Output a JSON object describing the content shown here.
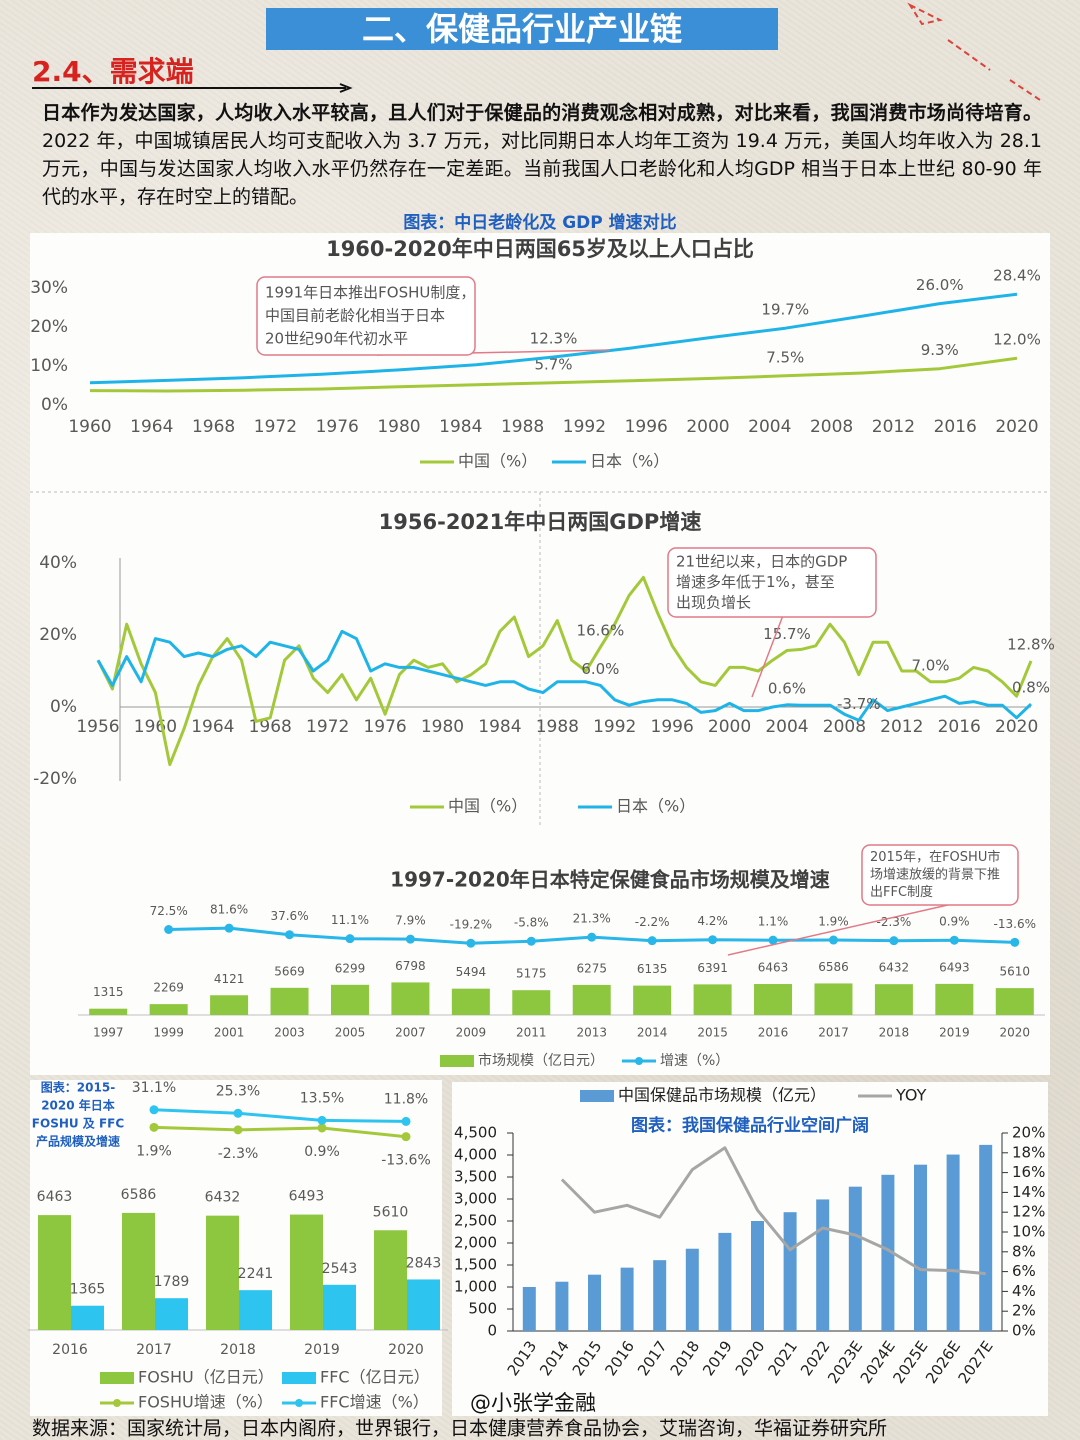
{
  "header": {
    "title": "二、保健品行业产业链",
    "section": "2.4、需求端",
    "paragraph_bold": "日本作为发达国家，人均收入水平较高，且人们对于保健品的消费观念相对成熟，对比来看，我国消费市场尚待培育。",
    "paragraph": "2022 年，中国城镇居民人均可支配收入为 3.7 万元，对比同期日本人均年工资为 19.4 万元，美国人均年收入为 28.1 万元，中国与发达国家人均收入水平仍然存在一定差距。当前我国人口老龄化和人均GDP 相当于日本上世纪 80-90 年代的水平，存在时空上的错配。",
    "figure_caption": "图表：中日老龄化及 GDP 增速对比"
  },
  "chart_data": [
    {
      "type": "line",
      "title": "1960-2020年中日两国65岁及以上人口占比",
      "x": [
        1960,
        1965,
        1970,
        1975,
        1980,
        1985,
        1990,
        1995,
        2000,
        2005,
        2010,
        2015,
        2020
      ],
      "xlim": [
        1960,
        2020
      ],
      "xticks": [
        1960,
        1964,
        1968,
        1972,
        1976,
        1980,
        1984,
        1988,
        1992,
        1996,
        2000,
        2004,
        2008,
        2012,
        2016,
        2020
      ],
      "ylim": [
        0,
        30
      ],
      "yticks": [
        {
          "value": 0,
          "label": "0%"
        },
        {
          "value": 10,
          "label": "10%"
        },
        {
          "value": 20,
          "label": "20%"
        },
        {
          "value": 30,
          "label": "30%"
        }
      ],
      "series": [
        {
          "name": "中国（%）",
          "color": "#a3c93a",
          "values": [
            3.7,
            3.6,
            3.8,
            4.1,
            4.7,
            5.2,
            5.7,
            6.2,
            6.8,
            7.5,
            8.2,
            9.3,
            12.0
          ],
          "value_labels": [
            null,
            null,
            null,
            null,
            null,
            null,
            "5.7%",
            null,
            null,
            "7.5%",
            null,
            "9.3%",
            "12.0%"
          ]
        },
        {
          "name": "日本（%）",
          "color": "#1fb4e8",
          "values": [
            5.7,
            6.3,
            7.0,
            7.9,
            9.0,
            10.3,
            12.3,
            14.6,
            17.2,
            19.7,
            22.8,
            26.0,
            28.4
          ],
          "value_labels": [
            null,
            null,
            null,
            null,
            null,
            null,
            "12.3%",
            null,
            null,
            "19.7%",
            null,
            "26.0%",
            "28.4%"
          ]
        }
      ],
      "annotation": [
        "1991年日本推出FOSHU制度，",
        "中国目前老龄化相当于日本",
        "20世纪90年代初水平"
      ]
    },
    {
      "type": "line",
      "title": "1956-2021年中日两国GDP增速",
      "x": [
        1956,
        1957,
        1958,
        1959,
        1960,
        1961,
        1962,
        1963,
        1964,
        1965,
        1966,
        1967,
        1968,
        1969,
        1970,
        1971,
        1972,
        1973,
        1974,
        1975,
        1976,
        1977,
        1978,
        1979,
        1980,
        1981,
        1982,
        1983,
        1984,
        1985,
        1986,
        1987,
        1988,
        1989,
        1990,
        1991,
        1992,
        1993,
        1994,
        1995,
        1996,
        1997,
        1998,
        1999,
        2000,
        2001,
        2002,
        2003,
        2004,
        2005,
        2006,
        2007,
        2008,
        2009,
        2010,
        2011,
        2012,
        2013,
        2014,
        2015,
        2016,
        2017,
        2018,
        2019,
        2020,
        2021
      ],
      "xlim": [
        1956,
        2021
      ],
      "xticks": [
        1956,
        1960,
        1964,
        1968,
        1972,
        1976,
        1980,
        1984,
        1988,
        1992,
        1996,
        2000,
        2004,
        2008,
        2012,
        2016,
        2020
      ],
      "ylim": [
        -20,
        40
      ],
      "yticks": [
        {
          "value": -20,
          "label": "-20%"
        },
        {
          "value": 0,
          "label": "0%"
        },
        {
          "value": 20,
          "label": "20%"
        },
        {
          "value": 40,
          "label": "40%"
        }
      ],
      "series": [
        {
          "name": "中国（%）",
          "color": "#a3c93a",
          "values": [
            13,
            5,
            23,
            12,
            4,
            -16,
            -6,
            6,
            14,
            19,
            13,
            -4,
            -3,
            13,
            17,
            8,
            4,
            9,
            2,
            8,
            -2,
            9,
            13,
            11,
            12,
            7,
            9,
            12,
            21,
            25,
            14,
            17,
            24,
            13,
            10,
            16.6,
            23,
            31,
            36,
            26,
            17,
            11,
            7,
            6,
            11,
            11,
            10,
            13,
            15.7,
            16,
            17,
            23,
            18,
            9,
            18,
            18,
            10,
            10,
            7.0,
            7,
            8,
            11,
            10,
            7,
            3,
            12.8
          ],
          "value_labels": [
            null,
            null,
            null,
            null,
            null,
            null,
            null,
            null,
            null,
            null,
            null,
            null,
            null,
            null,
            null,
            null,
            null,
            null,
            null,
            null,
            null,
            null,
            null,
            null,
            null,
            null,
            null,
            null,
            null,
            null,
            null,
            null,
            null,
            null,
            null,
            "16.6%",
            null,
            null,
            null,
            null,
            null,
            null,
            null,
            null,
            null,
            null,
            null,
            null,
            "15.7%",
            null,
            null,
            null,
            null,
            null,
            null,
            null,
            null,
            null,
            "7.0%",
            null,
            null,
            null,
            null,
            null,
            null,
            "12.8%"
          ]
        },
        {
          "name": "日本（%）",
          "color": "#1fb4e8",
          "values": [
            13,
            6,
            14,
            7,
            19,
            18,
            14,
            15,
            14,
            16,
            17,
            14,
            18,
            17,
            16,
            10,
            13,
            21,
            19,
            10,
            12,
            11,
            11,
            10,
            9,
            8,
            7,
            6,
            7,
            7,
            5,
            4,
            7,
            7,
            7,
            6.0,
            2,
            0.5,
            1.5,
            2,
            2,
            1,
            -1.5,
            -1,
            1,
            -1,
            -1,
            0,
            0.6,
            0.5,
            0.5,
            0.5,
            -2,
            -3.7,
            2,
            -1,
            0,
            1,
            2,
            3,
            1,
            1.5,
            0.5,
            0.5,
            -3,
            0.8
          ],
          "value_labels": [
            null,
            null,
            null,
            null,
            null,
            null,
            null,
            null,
            null,
            null,
            null,
            null,
            null,
            null,
            null,
            null,
            null,
            null,
            null,
            null,
            null,
            null,
            null,
            null,
            null,
            null,
            null,
            null,
            null,
            null,
            null,
            null,
            null,
            null,
            null,
            "6.0%",
            null,
            null,
            null,
            null,
            null,
            null,
            null,
            null,
            null,
            null,
            null,
            null,
            "0.6%",
            null,
            null,
            null,
            null,
            "-3.7%",
            null,
            null,
            null,
            null,
            null,
            null,
            null,
            null,
            null,
            null,
            null,
            "0.8%"
          ]
        }
      ],
      "annotation": [
        "21世纪以来，日本的GDP",
        "增速多年低于1%，甚至",
        "出现负增长"
      ]
    },
    {
      "type": "combo",
      "title": "1997-2020年日本特定保健食品市场规模及增速",
      "categories": [
        "1997",
        "1999",
        "2001",
        "2003",
        "2005",
        "2007",
        "2009",
        "2011",
        "2013",
        "2014",
        "2015",
        "2016",
        "2017",
        "2018",
        "2019",
        "2020"
      ],
      "ylim": [
        0,
        24000
      ],
      "y2lim": [
        -500,
        270
      ],
      "series": [
        {
          "name": "市场规模（亿日元）",
          "type": "bar",
          "color": "#8dc63f",
          "data_labels": true,
          "values": [
            1315,
            2269,
            4121,
            5669,
            6299,
            6798,
            5494,
            5175,
            6275,
            6135,
            6391,
            6463,
            6586,
            6432,
            6493,
            5610
          ]
        },
        {
          "name": "增速（%）",
          "type": "line",
          "axis": "y2",
          "color": "#29b6e8",
          "marker": true,
          "values": [
            null,
            72.5,
            81.6,
            37.6,
            11.1,
            7.9,
            -19.2,
            -5.8,
            21.3,
            -2.2,
            4.2,
            1.1,
            1.9,
            -2.3,
            0.9,
            -13.6
          ],
          "value_labels": [
            null,
            "72.5%",
            "81.6%",
            "37.6%",
            "11.1%",
            "7.9%",
            "-19.2%",
            "-5.8%",
            "21.3%",
            "-2.2%",
            "4.2%",
            "1.1%",
            "1.9%",
            "-2.3%",
            "0.9%",
            "-13.6%"
          ]
        }
      ],
      "annotation": [
        "2015年，在FOSHU市",
        "场增速放缓的背景下推",
        "出FFC制度"
      ]
    },
    {
      "type": "combo",
      "caption": [
        "图表：2015-",
        "2020 年日本",
        "FOSHU 及 FFC",
        "产品规模及增速"
      ],
      "categories": [
        "2016",
        "2017",
        "2018",
        "2019",
        "2020"
      ],
      "ylim": [
        0,
        13500
      ],
      "y2lim": [
        -335,
        64
      ],
      "series": [
        {
          "name": "FOSHU（亿日元）",
          "type": "bar",
          "color": "#8dc63f",
          "data_labels": true,
          "values": [
            6463,
            6586,
            6432,
            6493,
            5610
          ]
        },
        {
          "name": "FFC（亿日元）",
          "type": "bar",
          "color": "#2ec4f0",
          "data_labels": true,
          "values": [
            1365,
            1789,
            2241,
            2543,
            2843
          ]
        },
        {
          "name": "FOSHU增速（%）",
          "type": "line",
          "axis": "y2",
          "color": "#a3c93a",
          "marker": true,
          "values": [
            null,
            1.9,
            -2.3,
            0.9,
            -13.6
          ],
          "value_labels": [
            null,
            "1.9%",
            "-2.3%",
            "0.9%",
            "-13.6%"
          ]
        },
        {
          "name": "FFC增速（%）",
          "type": "line",
          "axis": "y2",
          "color": "#2ec4f0",
          "marker": true,
          "values": [
            null,
            31.1,
            25.3,
            13.5,
            11.8
          ],
          "value_labels": [
            null,
            "31.1%",
            "25.3%",
            "13.5%",
            "11.8%"
          ]
        }
      ]
    },
    {
      "type": "combo",
      "subtitle": "图表：我国保健品行业空间广阔",
      "categories": [
        "2013",
        "2014",
        "2015",
        "2016",
        "2017",
        "2018",
        "2019",
        "2020",
        "2021",
        "2022",
        "2023E",
        "2024E",
        "2025E",
        "2026E",
        "2027E"
      ],
      "ylim": [
        0,
        4500
      ],
      "yticks": [
        0,
        500,
        {
          "value": 1000,
          "label": "1,000"
        },
        {
          "value": 1500,
          "label": "1,500"
        },
        {
          "value": 2000,
          "label": "2,000"
        },
        {
          "value": 2500,
          "label": "2,500"
        },
        {
          "value": 3000,
          "label": "3,000"
        },
        {
          "value": 3500,
          "label": "3,500"
        },
        {
          "value": 4000,
          "label": "4,000"
        },
        {
          "value": 4500,
          "label": "4,500"
        }
      ],
      "y2lim": [
        0,
        20
      ],
      "y2ticks": [
        {
          "value": 0,
          "label": "0%"
        },
        {
          "value": 2,
          "label": "2%"
        },
        {
          "value": 4,
          "label": "4%"
        },
        {
          "value": 6,
          "label": "6%"
        },
        {
          "value": 8,
          "label": "8%"
        },
        {
          "value": 10,
          "label": "10%"
        },
        {
          "value": 12,
          "label": "12%"
        },
        {
          "value": 14,
          "label": "14%"
        },
        {
          "value": 16,
          "label": "16%"
        },
        {
          "value": 18,
          "label": "18%"
        },
        {
          "value": 20,
          "label": "20%"
        }
      ],
      "series": [
        {
          "name": "中国保健品市场规模（亿元）",
          "type": "bar",
          "color": "#5b9bd5",
          "values": [
            1000,
            1120,
            1280,
            1440,
            1610,
            1870,
            2230,
            2500,
            2700,
            2990,
            3280,
            3550,
            3780,
            4010,
            4230
          ]
        },
        {
          "name": "YOY",
          "type": "line",
          "axis": "y2",
          "color": "#a6a6a6",
          "values": [
            null,
            15.3,
            12.0,
            12.7,
            11.5,
            16.3,
            18.5,
            12.2,
            8.2,
            10.4,
            9.7,
            8.2,
            6.2,
            6.1,
            5.8
          ]
        }
      ]
    }
  ],
  "footer": {
    "watermark": "@小张学金融",
    "source": "数据来源：国家统计局，日本内阁府，世界银行，日本健康营养食品协会，艾瑞咨询，华福证券研究所"
  }
}
